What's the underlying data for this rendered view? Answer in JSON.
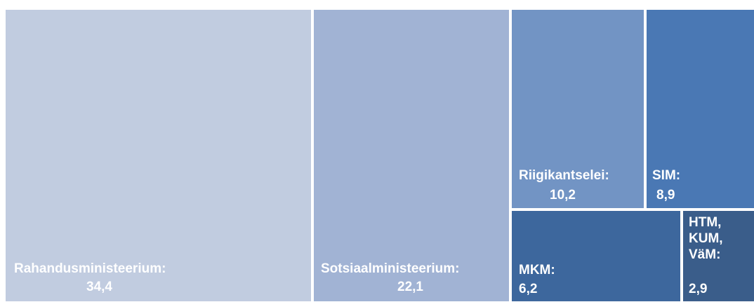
{
  "chart_data": {
    "type": "treemap",
    "items": [
      {
        "name": "Rahandusministeerium:",
        "value": "34,4",
        "color": "#c1cce0"
      },
      {
        "name": "Sotsiaalministeerium:",
        "value": "22,1",
        "color": "#a1b3d4"
      },
      {
        "name": "Riigikantselei:",
        "value": "10,2",
        "color": "#7294c4"
      },
      {
        "name": "SIM:",
        "value": "8,9",
        "color": "#4a78b4"
      },
      {
        "name": "MKM:",
        "value": "6,2",
        "color": "#3d679d"
      },
      {
        "name": "HTM,\nKUM,\nVäM:",
        "value": "2,9",
        "color": "#3a5d8a"
      }
    ]
  }
}
